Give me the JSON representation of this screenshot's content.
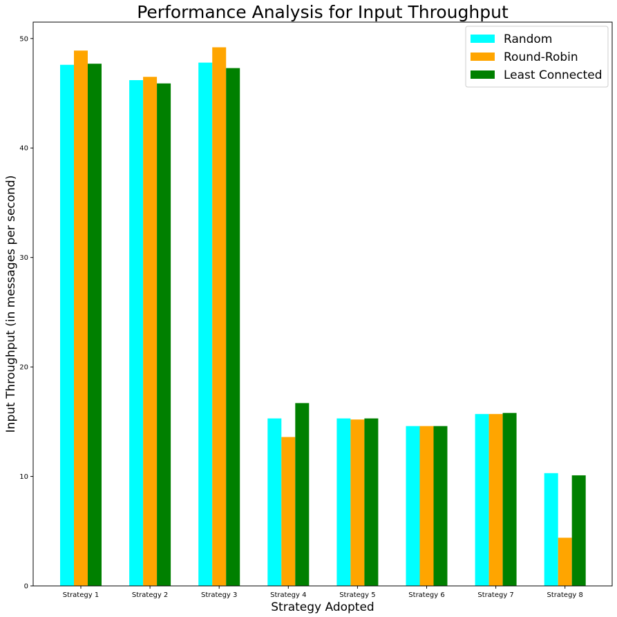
{
  "chart_data": {
    "type": "bar",
    "title": "Performance Analysis for Input Throughput",
    "xlabel": "Strategy Adopted",
    "ylabel": "Input Throughput (in messages per second)",
    "categories": [
      "Strategy 1",
      "Strategy 2",
      "Strategy 3",
      "Strategy 4",
      "Strategy 5",
      "Strategy 6",
      "Strategy 7",
      "Strategy 8"
    ],
    "series": [
      {
        "name": "Random",
        "color": "#00ffff",
        "values": [
          47.6,
          46.2,
          47.8,
          15.3,
          15.3,
          14.6,
          15.7,
          10.3
        ]
      },
      {
        "name": "Round-Robin",
        "color": "#ffa500",
        "values": [
          48.9,
          46.5,
          49.2,
          13.6,
          15.2,
          14.6,
          15.7,
          4.4
        ]
      },
      {
        "name": "Least Connected",
        "color": "#008000",
        "values": [
          47.7,
          45.9,
          47.3,
          16.7,
          15.3,
          14.6,
          15.8,
          10.1
        ]
      }
    ],
    "ylim": [
      0,
      51.5
    ],
    "yticks": [
      0,
      10,
      20,
      30,
      40,
      50
    ],
    "grid": false,
    "legend_position": "top-right"
  }
}
